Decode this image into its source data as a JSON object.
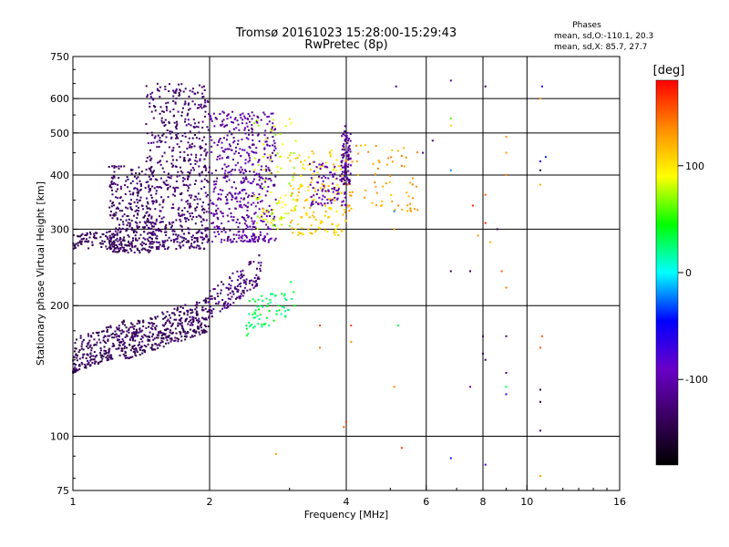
{
  "chart_data": {
    "type": "scatter",
    "title": "Tromsø 20161023 15:28:00-15:29:43",
    "subtitle": "RwPretec (8p)",
    "xlabel": "Frequency [MHz]",
    "ylabel": "Stationary phase Virtual Height [km]",
    "x_scale": "log",
    "y_scale": "log",
    "xlim": [
      1,
      16
    ],
    "ylim": [
      75,
      750
    ],
    "xticks": [
      1,
      2,
      4,
      6,
      8,
      10,
      16
    ],
    "xtick_labels": [
      "1",
      "2",
      "4",
      "6",
      "8",
      "10",
      "16"
    ],
    "yticks": [
      75,
      100,
      200,
      300,
      400,
      500,
      600,
      750
    ],
    "ytick_labels": [
      "75",
      "100",
      "200",
      "300",
      "400",
      "500",
      "600",
      "750"
    ],
    "x_gridlines": [
      2,
      4,
      6,
      8,
      10
    ],
    "y_gridlines": [
      100,
      200,
      300,
      400,
      500,
      600
    ],
    "grid": true,
    "stats": {
      "title": "Phases",
      "line1": "mean, sd,O:-110.1, 20.3",
      "line2": "mean, sd,X:  85.7, 27.7"
    },
    "colorbar": {
      "label": "[deg]",
      "range": [
        -180,
        180
      ],
      "ticks": [
        100,
        0,
        -100
      ],
      "tick_labels": [
        "100",
        "0",
        "-100"
      ],
      "stops": [
        "#ff0000",
        "#ff8c00",
        "#ffff00",
        "#00ff00",
        "#00ffff",
        "#0000ff",
        "#6a00c8",
        "#3a0060",
        "#000000"
      ]
    },
    "point_clusters": [
      {
        "f": [
          1.0,
          1.3
        ],
        "h": [
          140,
          185
        ],
        "phase": [
          -150,
          -125
        ],
        "count": 220,
        "hslope": 0.35
      },
      {
        "f": [
          1.3,
          2.0
        ],
        "h": [
          150,
          210
        ],
        "phase": [
          -155,
          -120
        ],
        "count": 380,
        "hslope": 0.45
      },
      {
        "f": [
          2.0,
          2.6
        ],
        "h": [
          185,
          265
        ],
        "phase": [
          -140,
          -110
        ],
        "count": 140,
        "hslope": 0.55
      },
      {
        "f": [
          2.4,
          3.1
        ],
        "h": [
          170,
          230
        ],
        "phase": [
          15,
          45
        ],
        "count": 70,
        "hslope": 0.4
      },
      {
        "f": [
          1.0,
          1.25
        ],
        "h": [
          270,
          295
        ],
        "phase": [
          -150,
          -130
        ],
        "count": 80,
        "hslope": 0.0
      },
      {
        "f": [
          1.2,
          1.5
        ],
        "h": [
          265,
          420
        ],
        "phase": [
          -150,
          -120
        ],
        "count": 330,
        "hslope": 0.0
      },
      {
        "f": [
          1.45,
          2.0
        ],
        "h": [
          270,
          650
        ],
        "phase": [
          -145,
          -115
        ],
        "count": 620,
        "hslope": 0.0
      },
      {
        "f": [
          2.0,
          2.8
        ],
        "h": [
          280,
          560
        ],
        "phase": [
          -125,
          -90
        ],
        "count": 520,
        "hslope": 0.0
      },
      {
        "f": [
          2.5,
          3.1
        ],
        "h": [
          300,
          540
        ],
        "phase": [
          60,
          105
        ],
        "count": 90,
        "hslope": 0.0
      },
      {
        "f": [
          3.0,
          4.0
        ],
        "h": [
          290,
          460
        ],
        "phase": [
          95,
          125
        ],
        "count": 170,
        "hslope": 0.0
      },
      {
        "f": [
          3.3,
          4.0
        ],
        "h": [
          340,
          430
        ],
        "phase": [
          -115,
          -85
        ],
        "count": 90,
        "hslope": 0.0
      },
      {
        "f": [
          3.9,
          4.1
        ],
        "h": [
          380,
          520
        ],
        "phase": [
          -125,
          -100
        ],
        "count": 90,
        "hslope": 0.0
      },
      {
        "f": [
          4.0,
          5.8
        ],
        "h": [
          330,
          470
        ],
        "phase": [
          110,
          140
        ],
        "count": 70,
        "hslope": 0.0
      }
    ],
    "sparse_points": [
      {
        "f": 5.15,
        "h": 640,
        "phase": -120
      },
      {
        "f": 6.8,
        "h": 660,
        "phase": -110
      },
      {
        "f": 8.1,
        "h": 640,
        "phase": -140
      },
      {
        "f": 10.8,
        "h": 640,
        "phase": -60
      },
      {
        "f": 10.7,
        "h": 600,
        "phase": 130
      },
      {
        "f": 6.8,
        "h": 540,
        "phase": 60
      },
      {
        "f": 6.8,
        "h": 520,
        "phase": 110
      },
      {
        "f": 9.0,
        "h": 490,
        "phase": 130
      },
      {
        "f": 9.0,
        "h": 450,
        "phase": 130
      },
      {
        "f": 10.7,
        "h": 430,
        "phase": -60
      },
      {
        "f": 11.0,
        "h": 440,
        "phase": -40
      },
      {
        "f": 10.7,
        "h": 410,
        "phase": -160
      },
      {
        "f": 6.2,
        "h": 480,
        "phase": -120
      },
      {
        "f": 5.3,
        "h": 420,
        "phase": 140
      },
      {
        "f": 5.9,
        "h": 450,
        "phase": -120
      },
      {
        "f": 6.8,
        "h": 410,
        "phase": -20
      },
      {
        "f": 9.0,
        "h": 400,
        "phase": 140
      },
      {
        "f": 8.1,
        "h": 360,
        "phase": 150
      },
      {
        "f": 10.7,
        "h": 380,
        "phase": 120
      },
      {
        "f": 7.6,
        "h": 340,
        "phase": 170
      },
      {
        "f": 8.1,
        "h": 310,
        "phase": 170
      },
      {
        "f": 5.1,
        "h": 330,
        "phase": -20
      },
      {
        "f": 5.1,
        "h": 300,
        "phase": 130
      },
      {
        "f": 7.8,
        "h": 290,
        "phase": 130
      },
      {
        "f": 8.3,
        "h": 280,
        "phase": 120
      },
      {
        "f": 8.6,
        "h": 300,
        "phase": -140
      },
      {
        "f": 6.8,
        "h": 240,
        "phase": -140
      },
      {
        "f": 7.5,
        "h": 240,
        "phase": -130
      },
      {
        "f": 8.8,
        "h": 240,
        "phase": 150
      },
      {
        "f": 9.0,
        "h": 220,
        "phase": 140
      },
      {
        "f": 3.5,
        "h": 180,
        "phase": 160
      },
      {
        "f": 4.1,
        "h": 180,
        "phase": 160
      },
      {
        "f": 5.2,
        "h": 180,
        "phase": 30
      },
      {
        "f": 3.5,
        "h": 160,
        "phase": 140
      },
      {
        "f": 4.1,
        "h": 165,
        "phase": 130
      },
      {
        "f": 8.0,
        "h": 170,
        "phase": -120
      },
      {
        "f": 9.0,
        "h": 170,
        "phase": -130
      },
      {
        "f": 10.8,
        "h": 170,
        "phase": 150
      },
      {
        "f": 10.7,
        "h": 160,
        "phase": 150
      },
      {
        "f": 8.0,
        "h": 155,
        "phase": -140
      },
      {
        "f": 9.0,
        "h": 140,
        "phase": -130
      },
      {
        "f": 8.1,
        "h": 150,
        "phase": -130
      },
      {
        "f": 7.5,
        "h": 130,
        "phase": -90
      },
      {
        "f": 9.0,
        "h": 130,
        "phase": 30
      },
      {
        "f": 5.1,
        "h": 130,
        "phase": 140
      },
      {
        "f": 10.7,
        "h": 128,
        "phase": -150
      },
      {
        "f": 9.0,
        "h": 125,
        "phase": -60
      },
      {
        "f": 10.7,
        "h": 120,
        "phase": -150
      },
      {
        "f": 4.0,
        "h": 108,
        "phase": 160
      },
      {
        "f": 3.95,
        "h": 105,
        "phase": 150
      },
      {
        "f": 10.7,
        "h": 103,
        "phase": -130
      },
      {
        "f": 5.3,
        "h": 94,
        "phase": 160
      },
      {
        "f": 2.8,
        "h": 91,
        "phase": 130
      },
      {
        "f": 6.8,
        "h": 89,
        "phase": -40
      },
      {
        "f": 8.1,
        "h": 86,
        "phase": -80
      },
      {
        "f": 10.7,
        "h": 81,
        "phase": 130
      }
    ]
  }
}
